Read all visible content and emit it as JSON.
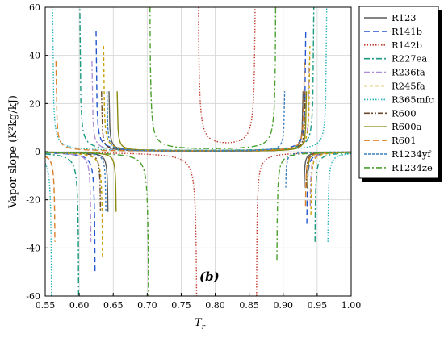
{
  "chart_data": {
    "type": "line",
    "xlabel": "T",
    "xlabel_sub": "r",
    "ylabel": "Vapor slope (K²kg/kJ)",
    "xlim": [
      0.55,
      1.0
    ],
    "ylim": [
      -60,
      60
    ],
    "xticks": [
      "0.55",
      "0.60",
      "0.65",
      "0.70",
      "0.75",
      "0.80",
      "0.85",
      "0.90",
      "0.95",
      "1.00"
    ],
    "yticks": [
      "-60",
      "-40",
      "-20",
      "0",
      "20",
      "40",
      "60"
    ],
    "annotation": "(b)",
    "grid": true,
    "legend_position": "right",
    "series": [
      {
        "name": "R123",
        "color": "#5a5a5a",
        "dash": "solid",
        "poles": [
          0.643,
          0.93
        ],
        "k": 0.02
      },
      {
        "name": "R141b",
        "color": "#2255cc",
        "dash": "longdash",
        "poles": [
          0.624,
          0.934
        ],
        "k": 0.04
      },
      {
        "name": "R142b",
        "color": "#c0392b",
        "dash": "dot",
        "poles": [
          0.774,
          0.86
        ],
        "k": 0.08
      },
      {
        "name": "R227ea",
        "color": "#1a9a80",
        "dash": "dashdot",
        "poles": [
          0.6,
          0.946
        ],
        "k": 0.05
      },
      {
        "name": "R236fa",
        "color": "#b08fd8",
        "dash": "dashdot",
        "poles": [
          0.618,
          0.939
        ],
        "k": 0.03
      },
      {
        "name": "R245fa",
        "color": "#c8a000",
        "dash": "shortdash",
        "poles": [
          0.635,
          0.94
        ],
        "k": 0.035
      },
      {
        "name": "R365mfc",
        "color": "#22b0b8",
        "dash": "dot",
        "poles": [
          0.56,
          0.965
        ],
        "k": 0.05
      },
      {
        "name": "R600",
        "color": "#6b4a2e",
        "dash": "dashdotdot",
        "poles": [
          0.632,
          0.933
        ],
        "k": 0.02
      },
      {
        "name": "R600a",
        "color": "#8a8a10",
        "dash": "solid",
        "poles": [
          0.655,
          0.935
        ],
        "k": 0.02
      },
      {
        "name": "R601",
        "color": "#d9822b",
        "dash": "longdash",
        "poles": [
          0.565,
          0.932
        ],
        "k": 0.03
      },
      {
        "name": "R1234yf",
        "color": "#3b7dc0",
        "dash": "shortdot",
        "poles": [
          0.64,
          0.903
        ],
        "k": 0.02
      },
      {
        "name": "R1234ze",
        "color": "#4aa02c",
        "dash": "dashdot",
        "poles": [
          0.703,
          0.89
        ],
        "k": 0.06
      }
    ]
  }
}
